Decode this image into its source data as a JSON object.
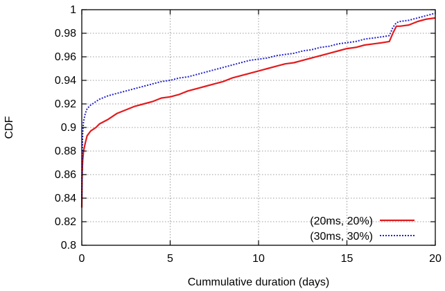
{
  "chart_data": {
    "type": "line",
    "title": "",
    "xlabel": "Cummulative duration (days)",
    "ylabel": "CDF",
    "xlim": [
      0,
      20
    ],
    "ylim": [
      0.8,
      1.0
    ],
    "x_ticks": [
      "0",
      "5",
      "10",
      "15",
      "20"
    ],
    "y_ticks": [
      "0.8",
      "0.82",
      "0.84",
      "0.86",
      "0.88",
      "0.9",
      "0.92",
      "0.94",
      "0.96",
      "0.98",
      "1"
    ],
    "x_tick_values": [
      0,
      5,
      10,
      15,
      20
    ],
    "y_tick_values": [
      0.8,
      0.82,
      0.84,
      0.86,
      0.88,
      0.9,
      0.92,
      0.94,
      0.96,
      0.98,
      1.0
    ],
    "grid": true,
    "legend_position": "bottom-right",
    "series": [
      {
        "name": "(20ms, 20%)",
        "color": "#e31a1c",
        "style": "solid",
        "x": [
          0.0,
          0.02,
          0.05,
          0.1,
          0.2,
          0.3,
          0.5,
          0.8,
          1.0,
          1.5,
          2.0,
          2.5,
          3.0,
          3.5,
          4.0,
          4.5,
          5.0,
          5.5,
          6.0,
          6.5,
          7.0,
          7.5,
          8.0,
          8.5,
          9.0,
          9.5,
          10.0,
          10.5,
          11.0,
          11.5,
          12.0,
          12.5,
          13.0,
          13.5,
          14.0,
          14.5,
          15.0,
          15.5,
          16.0,
          16.5,
          17.0,
          17.4,
          17.6,
          17.8,
          18.0,
          18.5,
          19.0,
          19.5,
          20.0
        ],
        "y": [
          0.832,
          0.86,
          0.872,
          0.88,
          0.887,
          0.893,
          0.897,
          0.9,
          0.903,
          0.907,
          0.912,
          0.915,
          0.918,
          0.92,
          0.922,
          0.925,
          0.926,
          0.928,
          0.931,
          0.933,
          0.935,
          0.937,
          0.939,
          0.942,
          0.944,
          0.946,
          0.948,
          0.95,
          0.952,
          0.954,
          0.955,
          0.957,
          0.959,
          0.961,
          0.963,
          0.965,
          0.967,
          0.968,
          0.97,
          0.971,
          0.972,
          0.973,
          0.98,
          0.986,
          0.986,
          0.987,
          0.99,
          0.992,
          0.993
        ]
      },
      {
        "name": "(30ms, 30%)",
        "color": "#1f1fd0",
        "style": "dotted",
        "x": [
          0.0,
          0.02,
          0.05,
          0.1,
          0.2,
          0.3,
          0.5,
          0.8,
          1.0,
          1.5,
          2.0,
          2.5,
          3.0,
          3.5,
          4.0,
          4.5,
          5.0,
          5.5,
          6.0,
          6.5,
          7.0,
          7.5,
          8.0,
          8.5,
          9.0,
          9.5,
          10.0,
          10.5,
          11.0,
          11.5,
          12.0,
          12.5,
          13.0,
          13.5,
          14.0,
          14.5,
          15.0,
          15.5,
          16.0,
          16.5,
          17.0,
          17.4,
          17.6,
          17.8,
          18.0,
          18.5,
          19.0,
          19.5,
          20.0
        ],
        "y": [
          0.84,
          0.875,
          0.895,
          0.905,
          0.912,
          0.916,
          0.919,
          0.922,
          0.924,
          0.927,
          0.929,
          0.931,
          0.933,
          0.935,
          0.937,
          0.939,
          0.94,
          0.942,
          0.943,
          0.945,
          0.947,
          0.949,
          0.951,
          0.953,
          0.955,
          0.957,
          0.958,
          0.959,
          0.961,
          0.962,
          0.963,
          0.965,
          0.966,
          0.968,
          0.969,
          0.971,
          0.972,
          0.973,
          0.975,
          0.976,
          0.977,
          0.978,
          0.985,
          0.989,
          0.99,
          0.991,
          0.993,
          0.995,
          0.997
        ]
      }
    ]
  }
}
